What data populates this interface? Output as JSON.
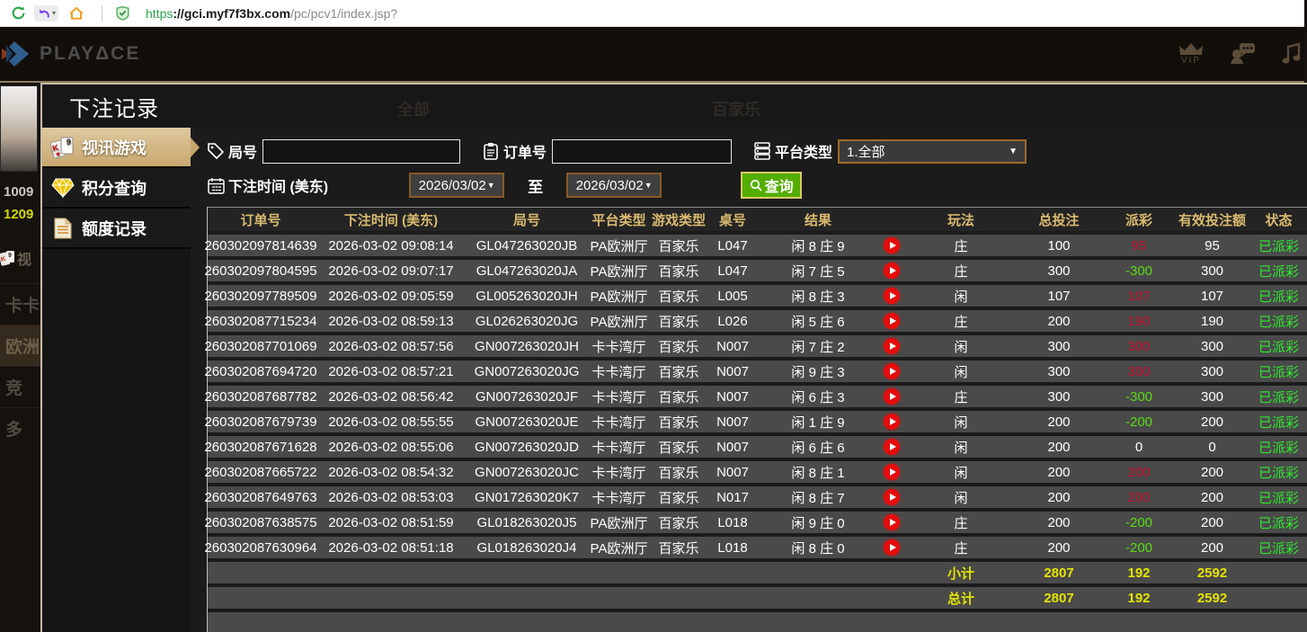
{
  "browser": {
    "url": {
      "scheme": "https",
      "sep": "://",
      "host": "gci.myf7f3bx.com",
      "path": "/pc/pcv1/index.jsp?"
    }
  },
  "header": {
    "brand": "PLAYΔCE",
    "vip_label": "VIP",
    "colors": {
      "header_border": "#8d7c5f",
      "brand_text": "#4d4d4d"
    }
  },
  "background": {
    "balance_top": "1009",
    "balance_bottom": "1209",
    "nav_partial": [
      "视",
      "卡卡",
      "欧洲",
      "竞",
      "多"
    ],
    "faint_labels": [
      "全部",
      "百家乐"
    ]
  },
  "modal": {
    "title": "下注记录",
    "sidebar": [
      {
        "label": "视讯游戏",
        "active": true
      },
      {
        "label": "积分查询",
        "active": false
      },
      {
        "label": "额度记录",
        "active": false
      }
    ]
  },
  "form": {
    "round_label": "局号",
    "round_value": "",
    "order_label": "订单号",
    "order_value": "",
    "platform_label": "平台类型",
    "platform_value": "1.全部",
    "time_label": "下注时间 (美东)",
    "date_from": "2026/03/02",
    "to_label": "至",
    "date_to": "2026/03/02",
    "search_label": "查询"
  },
  "table": {
    "headers": [
      "订单号",
      "下注时间 (美东)",
      "局号",
      "平台类型",
      "游戏类型",
      "桌号",
      "结果",
      "",
      "玩法",
      "总投注",
      "派彩",
      "有效投注额",
      "状态"
    ],
    "rows": [
      {
        "order": "260302097814639",
        "time": "2026-03-02 09:08:14",
        "round": "GL047263020JB",
        "platform": "PA欧洲厅",
        "game": "百家乐",
        "table_no": "L047",
        "result": "闲 8 庄 9",
        "play": "庄",
        "bet": "100",
        "payout": "95",
        "payout_color": "pos",
        "valid": "95",
        "status": "已派彩"
      },
      {
        "order": "260302097804595",
        "time": "2026-03-02 09:07:17",
        "round": "GL047263020JA",
        "platform": "PA欧洲厅",
        "game": "百家乐",
        "table_no": "L047",
        "result": "闲 7 庄 5",
        "play": "庄",
        "bet": "300",
        "payout": "-300",
        "payout_color": "neg",
        "valid": "300",
        "status": "已派彩"
      },
      {
        "order": "260302097789509",
        "time": "2026-03-02 09:05:59",
        "round": "GL005263020JH",
        "platform": "PA欧洲厅",
        "game": "百家乐",
        "table_no": "L005",
        "result": "闲 8 庄 3",
        "play": "闲",
        "bet": "107",
        "payout": "107",
        "payout_color": "pos",
        "valid": "107",
        "status": "已派彩"
      },
      {
        "order": "260302087715234",
        "time": "2026-03-02 08:59:13",
        "round": "GL026263020JG",
        "platform": "PA欧洲厅",
        "game": "百家乐",
        "table_no": "L026",
        "result": "闲 5 庄 6",
        "play": "庄",
        "bet": "200",
        "payout": "190",
        "payout_color": "pos",
        "valid": "190",
        "status": "已派彩"
      },
      {
        "order": "260302087701069",
        "time": "2026-03-02 08:57:56",
        "round": "GN007263020JH",
        "platform": "卡卡湾厅",
        "game": "百家乐",
        "table_no": "N007",
        "result": "闲 7 庄 2",
        "play": "闲",
        "bet": "300",
        "payout": "300",
        "payout_color": "pos",
        "valid": "300",
        "status": "已派彩"
      },
      {
        "order": "260302087694720",
        "time": "2026-03-02 08:57:21",
        "round": "GN007263020JG",
        "platform": "卡卡湾厅",
        "game": "百家乐",
        "table_no": "N007",
        "result": "闲 9 庄 3",
        "play": "闲",
        "bet": "300",
        "payout": "300",
        "payout_color": "pos",
        "valid": "300",
        "status": "已派彩"
      },
      {
        "order": "260302087687782",
        "time": "2026-03-02 08:56:42",
        "round": "GN007263020JF",
        "platform": "卡卡湾厅",
        "game": "百家乐",
        "table_no": "N007",
        "result": "闲 6 庄 3",
        "play": "庄",
        "bet": "300",
        "payout": "-300",
        "payout_color": "neg",
        "valid": "300",
        "status": "已派彩"
      },
      {
        "order": "260302087679739",
        "time": "2026-03-02 08:55:55",
        "round": "GN007263020JE",
        "platform": "卡卡湾厅",
        "game": "百家乐",
        "table_no": "N007",
        "result": "闲 1 庄 9",
        "play": "闲",
        "bet": "200",
        "payout": "-200",
        "payout_color": "neg",
        "valid": "200",
        "status": "已派彩"
      },
      {
        "order": "260302087671628",
        "time": "2026-03-02 08:55:06",
        "round": "GN007263020JD",
        "platform": "卡卡湾厅",
        "game": "百家乐",
        "table_no": "N007",
        "result": "闲 6 庄 6",
        "play": "闲",
        "bet": "200",
        "payout": "0",
        "payout_color": "zero",
        "valid": "0",
        "status": "已派彩"
      },
      {
        "order": "260302087665722",
        "time": "2026-03-02 08:54:32",
        "round": "GN007263020JC",
        "platform": "卡卡湾厅",
        "game": "百家乐",
        "table_no": "N007",
        "result": "闲 8 庄 1",
        "play": "闲",
        "bet": "200",
        "payout": "200",
        "payout_color": "pos",
        "valid": "200",
        "status": "已派彩"
      },
      {
        "order": "260302087649763",
        "time": "2026-03-02 08:53:03",
        "round": "GN017263020K7",
        "platform": "卡卡湾厅",
        "game": "百家乐",
        "table_no": "N017",
        "result": "闲 8 庄 7",
        "play": "闲",
        "bet": "200",
        "payout": "200",
        "payout_color": "pos",
        "valid": "200",
        "status": "已派彩"
      },
      {
        "order": "260302087638575",
        "time": "2026-03-02 08:51:59",
        "round": "GL018263020J5",
        "platform": "PA欧洲厅",
        "game": "百家乐",
        "table_no": "L018",
        "result": "闲 9 庄 0",
        "play": "庄",
        "bet": "200",
        "payout": "-200",
        "payout_color": "neg",
        "valid": "200",
        "status": "已派彩"
      },
      {
        "order": "260302087630964",
        "time": "2026-03-02 08:51:18",
        "round": "GL018263020J4",
        "platform": "PA欧洲厅",
        "game": "百家乐",
        "table_no": "L018",
        "result": "闲 8 庄 0",
        "play": "庄",
        "bet": "200",
        "payout": "-200",
        "payout_color": "neg",
        "valid": "200",
        "status": "已派彩"
      }
    ],
    "subtotal": {
      "label": "小计",
      "bet": "2807",
      "payout": "192",
      "valid": "2592"
    },
    "total": {
      "label": "总计",
      "bet": "2807",
      "payout": "192",
      "valid": "2592"
    },
    "colors": {
      "payout_win": "#c51230",
      "payout_loss": "#58dd12",
      "status_paid": "#2ee82e",
      "totals": "#e4e400",
      "header_text": "#d9ba6f"
    }
  }
}
